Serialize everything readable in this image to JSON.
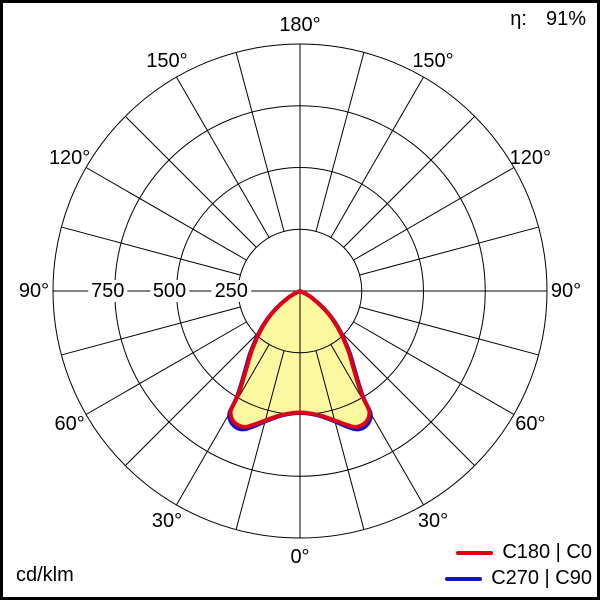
{
  "header": {
    "eta_label": "η:",
    "eta_value": "91%"
  },
  "footer": {
    "unit_label": "cd/klm"
  },
  "legend": {
    "items": [
      {
        "label": "C180 | C0",
        "color": "#e00014"
      },
      {
        "label": "C270 | C90",
        "color": "#1410cc"
      }
    ]
  },
  "chart_data": {
    "type": "polar",
    "subtype": "luminous-intensity-distribution",
    "unit": "cd/klm",
    "efficiency": "91%",
    "fill_color": "#fbf8a0",
    "grid_color": "#000000",
    "radial_axis": {
      "tick_labels": [
        "750",
        "500",
        "250"
      ],
      "tick_values": [
        750,
        500,
        250
      ],
      "circle_values": [
        250,
        500,
        750,
        1000
      ],
      "max": 1000
    },
    "angular_axis": {
      "tick_labels": [
        "0°",
        "30°",
        "60°",
        "90°",
        "120°",
        "150°",
        "180°"
      ],
      "tick_values": [
        0,
        30,
        60,
        90,
        120,
        150,
        180
      ],
      "grid_step_deg": 15
    },
    "series": [
      {
        "name": "C180 | C0",
        "color": "#e00014",
        "symmetric": true,
        "points_gamma_cd": [
          [
            0,
            492
          ],
          [
            8,
            506
          ],
          [
            14,
            536
          ],
          [
            19,
            572
          ],
          [
            22,
            594
          ],
          [
            25,
            598
          ],
          [
            28,
            587
          ],
          [
            30,
            560
          ],
          [
            30.5,
            512
          ],
          [
            31,
            480
          ],
          [
            32.5,
            430
          ],
          [
            35,
            375
          ],
          [
            39,
            310
          ],
          [
            44,
            238
          ],
          [
            49,
            175
          ],
          [
            54,
            113
          ],
          [
            60,
            55
          ],
          [
            66,
            12
          ],
          [
            69,
            0
          ]
        ]
      },
      {
        "name": "C270 | C90",
        "color": "#1410cc",
        "symmetric": true,
        "points_gamma_cd": [
          [
            0,
            494
          ],
          [
            8,
            508
          ],
          [
            14,
            540
          ],
          [
            19,
            580
          ],
          [
            22,
            604
          ],
          [
            25,
            610
          ],
          [
            28,
            598
          ],
          [
            30,
            572
          ],
          [
            30.5,
            522
          ],
          [
            31,
            490
          ],
          [
            32.5,
            440
          ],
          [
            35,
            384
          ],
          [
            39,
            318
          ],
          [
            44,
            244
          ],
          [
            49,
            179
          ],
          [
            54,
            116
          ],
          [
            60,
            56
          ],
          [
            66,
            12
          ],
          [
            69,
            0
          ]
        ]
      }
    ]
  }
}
